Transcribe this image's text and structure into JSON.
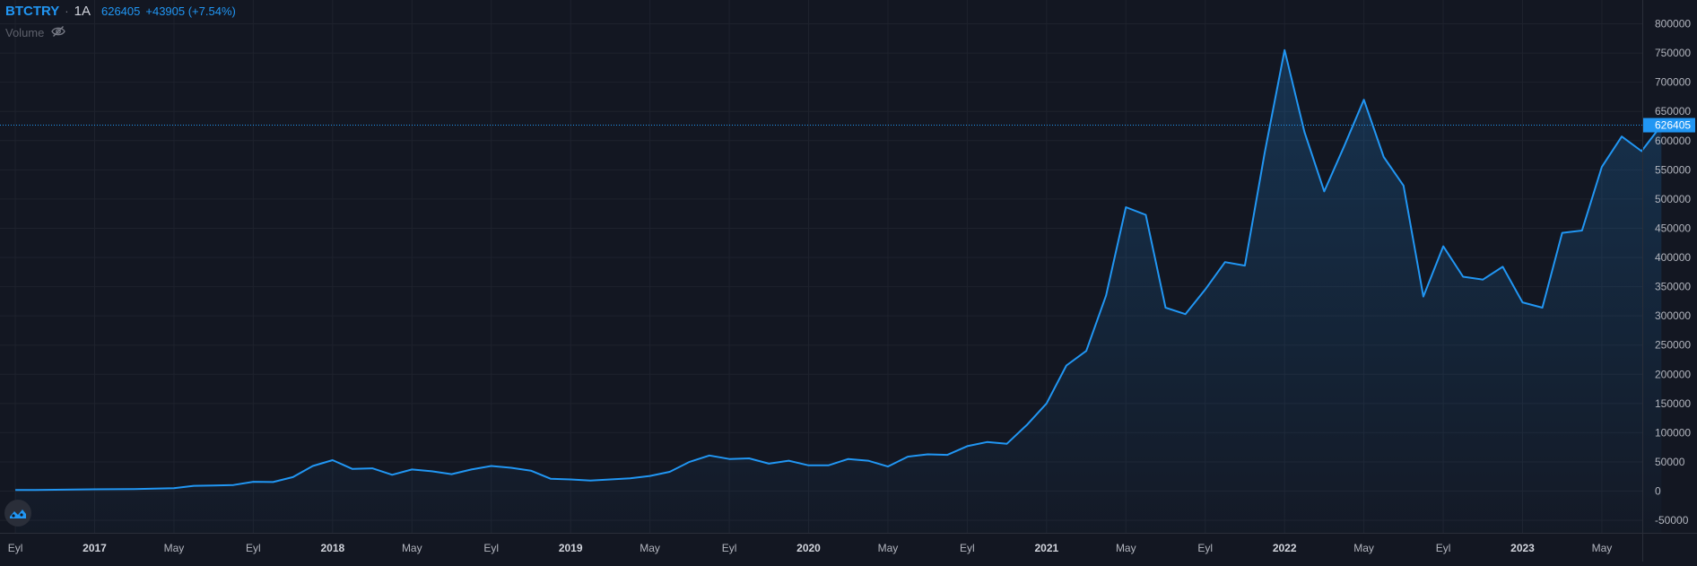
{
  "legend": {
    "symbol": "BTCTRY",
    "separator": "·",
    "interval": "1A",
    "last": "626405",
    "change": "+43905 (+7.54%)"
  },
  "volume_label": "Volume",
  "icons": {
    "volume_visibility": "eye-off-icon",
    "logo": "tradingview-logo-icon"
  },
  "colors": {
    "background": "#131722",
    "line": "#2196f3",
    "price_tag": "#2196f3",
    "grid": "#1e222d",
    "text": "#b2b5be"
  },
  "chart_data": {
    "type": "area",
    "title": "",
    "xlabel": "",
    "ylabel": "",
    "ylim": [
      -60000,
      800000
    ],
    "grid": true,
    "y_ticks": [
      -50000,
      0,
      50000,
      100000,
      150000,
      200000,
      250000,
      300000,
      350000,
      400000,
      450000,
      500000,
      550000,
      600000,
      650000,
      700000,
      750000,
      800000
    ],
    "x_ticks": [
      {
        "label": "Eyl",
        "date": "2016-09",
        "major": false
      },
      {
        "label": "2017",
        "date": "2017-01",
        "major": true
      },
      {
        "label": "May",
        "date": "2017-05",
        "major": false
      },
      {
        "label": "Eyl",
        "date": "2017-09",
        "major": false
      },
      {
        "label": "2018",
        "date": "2018-01",
        "major": true
      },
      {
        "label": "May",
        "date": "2018-05",
        "major": false
      },
      {
        "label": "Eyl",
        "date": "2018-09",
        "major": false
      },
      {
        "label": "2019",
        "date": "2019-01",
        "major": true
      },
      {
        "label": "May",
        "date": "2019-05",
        "major": false
      },
      {
        "label": "Eyl",
        "date": "2019-09",
        "major": false
      },
      {
        "label": "2020",
        "date": "2020-01",
        "major": true
      },
      {
        "label": "May",
        "date": "2020-05",
        "major": false
      },
      {
        "label": "Eyl",
        "date": "2020-09",
        "major": false
      },
      {
        "label": "2021",
        "date": "2021-01",
        "major": true
      },
      {
        "label": "May",
        "date": "2021-05",
        "major": false
      },
      {
        "label": "Eyl",
        "date": "2021-09",
        "major": false
      },
      {
        "label": "2022",
        "date": "2022-01",
        "major": true
      },
      {
        "label": "May",
        "date": "2022-05",
        "major": false
      },
      {
        "label": "Eyl",
        "date": "2022-09",
        "major": false
      },
      {
        "label": "2023",
        "date": "2023-01",
        "major": true
      },
      {
        "label": "May",
        "date": "2023-05",
        "major": false
      }
    ],
    "last_value": 626405,
    "series": [
      {
        "values": [
          [
            "2016-09",
            1800
          ],
          [
            "2016-10",
            2000
          ],
          [
            "2016-11",
            2300
          ],
          [
            "2016-12",
            2600
          ],
          [
            "2017-01",
            3000
          ],
          [
            "2017-02",
            3300
          ],
          [
            "2017-03",
            3600
          ],
          [
            "2017-04",
            4200
          ],
          [
            "2017-05",
            5000
          ],
          [
            "2017-06",
            9000
          ],
          [
            "2017-07",
            9500
          ],
          [
            "2017-08",
            10500
          ],
          [
            "2017-09",
            16000
          ],
          [
            "2017-10",
            15500
          ],
          [
            "2017-11",
            24000
          ],
          [
            "2017-12",
            43000
          ],
          [
            "2018-01",
            53000
          ],
          [
            "2018-02",
            38000
          ],
          [
            "2018-03",
            39000
          ],
          [
            "2018-04",
            28000
          ],
          [
            "2018-05",
            37000
          ],
          [
            "2018-06",
            34000
          ],
          [
            "2018-07",
            29000
          ],
          [
            "2018-08",
            37000
          ],
          [
            "2018-09",
            43000
          ],
          [
            "2018-10",
            40000
          ],
          [
            "2018-11",
            35000
          ],
          [
            "2018-12",
            21000
          ],
          [
            "2019-01",
            20000
          ],
          [
            "2019-02",
            18000
          ],
          [
            "2019-03",
            20000
          ],
          [
            "2019-04",
            22000
          ],
          [
            "2019-05",
            26000
          ],
          [
            "2019-06",
            33000
          ],
          [
            "2019-07",
            50000
          ],
          [
            "2019-08",
            61000
          ],
          [
            "2019-09",
            55000
          ],
          [
            "2019-10",
            56000
          ],
          [
            "2019-11",
            47000
          ],
          [
            "2019-12",
            52000
          ],
          [
            "2020-01",
            44000
          ],
          [
            "2020-02",
            44000
          ],
          [
            "2020-03",
            55000
          ],
          [
            "2020-04",
            52000
          ],
          [
            "2020-05",
            42000
          ],
          [
            "2020-06",
            59000
          ],
          [
            "2020-07",
            63000
          ],
          [
            "2020-08",
            62000
          ],
          [
            "2020-09",
            77000
          ],
          [
            "2020-10",
            84000
          ],
          [
            "2020-11",
            81000
          ],
          [
            "2020-12",
            113000
          ],
          [
            "2021-01",
            150000
          ],
          [
            "2021-02",
            215000
          ],
          [
            "2021-03",
            240000
          ],
          [
            "2021-04",
            335000
          ],
          [
            "2021-05",
            486000
          ],
          [
            "2021-06",
            473000
          ],
          [
            "2021-07",
            314000
          ],
          [
            "2021-08",
            303000
          ],
          [
            "2021-09",
            345000
          ],
          [
            "2021-10",
            392000
          ],
          [
            "2021-11",
            386000
          ],
          [
            "2021-12",
            580000
          ],
          [
            "2022-01",
            755000
          ],
          [
            "2022-02",
            615000
          ],
          [
            "2022-03",
            513000
          ],
          [
            "2022-04",
            590000
          ],
          [
            "2022-05",
            670000
          ],
          [
            "2022-06",
            572000
          ],
          [
            "2022-07",
            523000
          ],
          [
            "2022-08",
            333000
          ],
          [
            "2022-09",
            419000
          ],
          [
            "2022-10",
            367000
          ],
          [
            "2022-11",
            362000
          ],
          [
            "2022-12",
            384000
          ],
          [
            "2023-01",
            323000
          ],
          [
            "2023-02",
            314000
          ],
          [
            "2023-03",
            442000
          ],
          [
            "2023-04",
            446000
          ],
          [
            "2023-05",
            555000
          ],
          [
            "2023-06",
            607000
          ],
          [
            "2023-07",
            582000
          ],
          [
            "2023-08",
            626405
          ]
        ]
      }
    ]
  }
}
